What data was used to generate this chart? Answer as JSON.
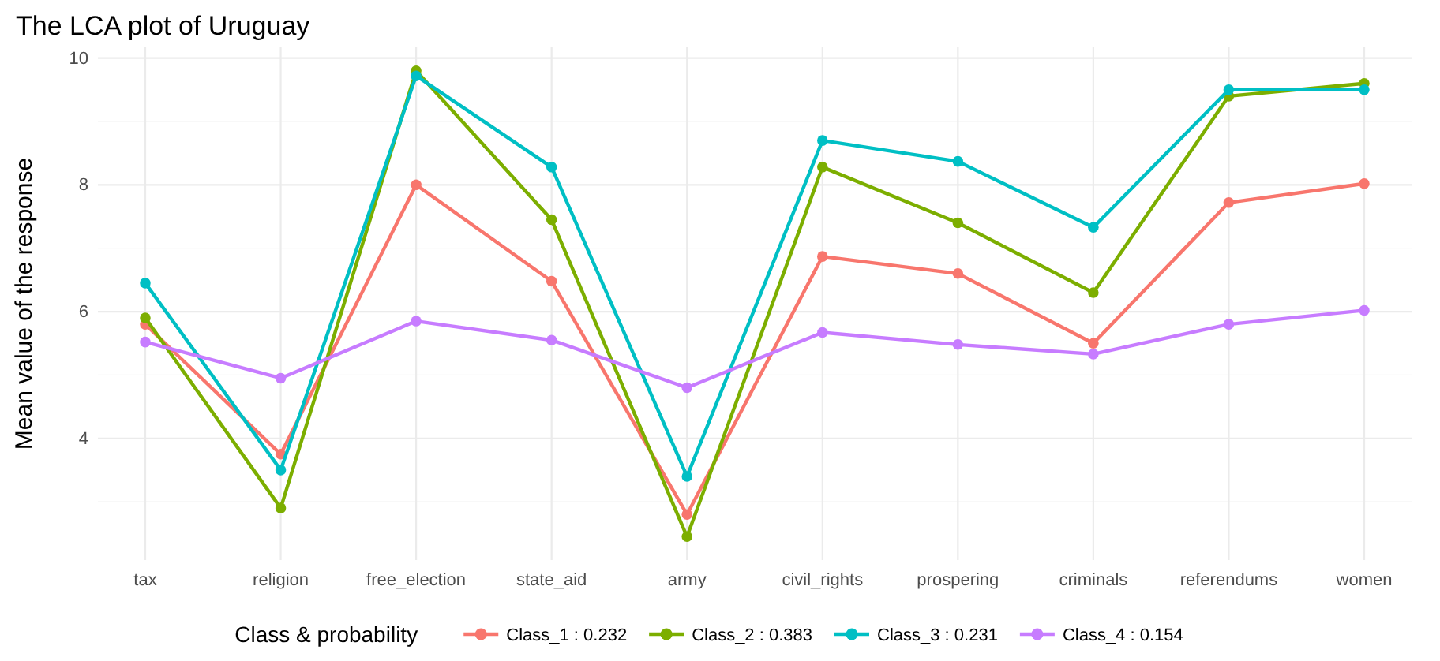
{
  "chart_data": {
    "type": "line",
    "title": "The LCA plot of Uruguay",
    "ylabel": "Mean value of the response",
    "legend_title": "Class & probability",
    "categories": [
      "tax",
      "religion",
      "free_election",
      "state_aid",
      "army",
      "civil_rights",
      "prospering",
      "criminals",
      "referendums",
      "women"
    ],
    "series": [
      {
        "name": "Class_1 : 0.232",
        "color": "#f8766d",
        "values": [
          5.8,
          3.75,
          8.0,
          6.48,
          2.8,
          6.87,
          6.6,
          5.5,
          7.72,
          8.02
        ]
      },
      {
        "name": "Class_2 : 0.383",
        "color": "#7cae00",
        "values": [
          5.9,
          2.9,
          9.8,
          7.45,
          2.45,
          8.28,
          7.4,
          6.3,
          9.4,
          9.6
        ]
      },
      {
        "name": "Class_3 : 0.231",
        "color": "#00bfc4",
        "values": [
          6.45,
          3.5,
          9.72,
          8.28,
          3.4,
          8.7,
          8.37,
          7.33,
          9.5,
          9.5
        ]
      },
      {
        "name": "Class_4 : 0.154",
        "color": "#c77cff",
        "values": [
          5.52,
          4.95,
          5.85,
          5.55,
          4.8,
          5.67,
          5.48,
          5.33,
          5.8,
          6.02
        ]
      }
    ],
    "ylim": [
      2.08,
      10.17
    ],
    "yticks": [
      4,
      6,
      8,
      10
    ],
    "grid": true,
    "legend": "bottom",
    "marker": "circle",
    "line_style": "solid"
  }
}
